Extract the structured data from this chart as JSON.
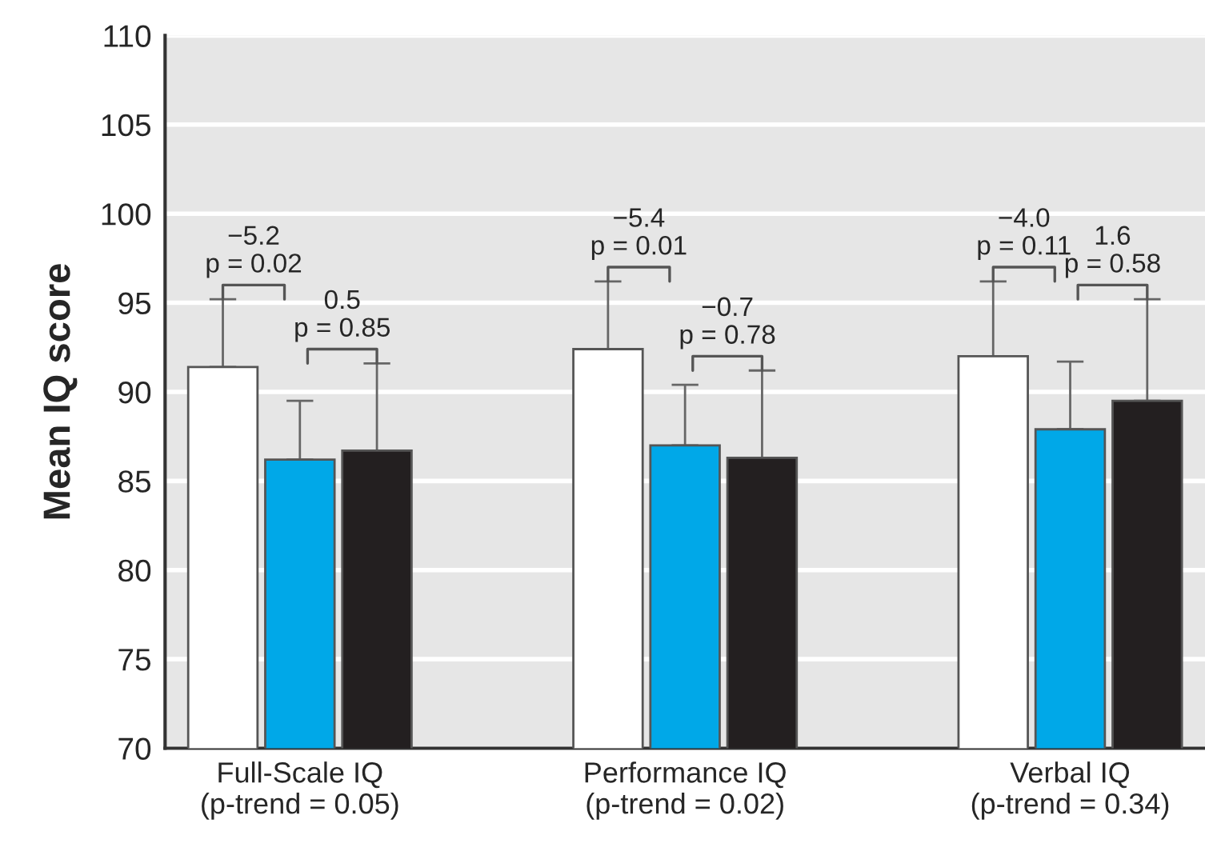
{
  "chart_data": {
    "type": "bar",
    "ylabel": "Mean IQ score",
    "categories": [
      "Full-Scale IQ\n(p-trend = 0.05)",
      "Performance IQ\n(p-trend = 0.02)",
      "Verbal IQ\n(p-trend = 0.34)"
    ],
    "series": [
      {
        "color": "#ffffff",
        "values": [
          91.4,
          92.4,
          92.0
        ],
        "errors": [
          [
            91.4,
            95.2
          ],
          [
            92.4,
            96.2
          ],
          [
            92.0,
            96.2
          ]
        ]
      },
      {
        "color": "#00a8e8",
        "values": [
          86.2,
          87.0,
          87.9
        ],
        "errors": [
          [
            86.2,
            89.5
          ],
          [
            87.0,
            90.4
          ],
          [
            87.9,
            91.7
          ]
        ]
      },
      {
        "color": "#231f20",
        "values": [
          86.7,
          86.3,
          89.5
        ],
        "errors": [
          [
            86.7,
            91.6
          ],
          [
            86.3,
            91.2
          ],
          [
            89.5,
            95.2
          ]
        ]
      }
    ],
    "annotations": [
      "−5.2\np = 0.02",
      "0.5\np = 0.85",
      "−5.4\np = 0.01",
      "−0.7\np = 0.78",
      "−4.0\np = 0.11",
      "1.6\np = 0.58"
    ],
    "ylim": [
      70,
      110
    ],
    "yticks": [
      70,
      75,
      80,
      85,
      90,
      95,
      100,
      105,
      110
    ],
    "grid": "y",
    "legend": false
  }
}
